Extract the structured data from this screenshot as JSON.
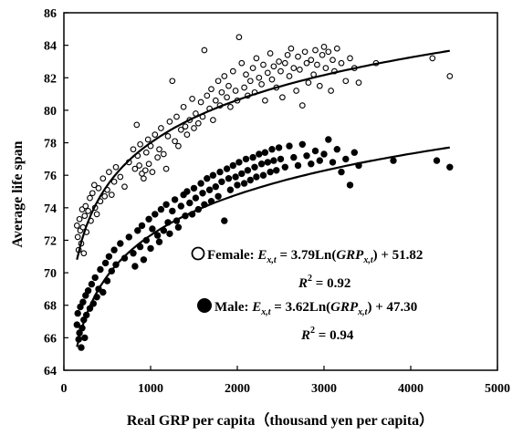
{
  "chart_data": {
    "type": "scatter",
    "xlabel": "Real GRP per capita（thousand yen per capita）",
    "ylabel": "Average life span",
    "xlim": [
      0,
      5000
    ],
    "ylim": [
      64,
      86
    ],
    "x_ticks": [
      "0",
      "1000",
      "2000",
      "3000",
      "4000",
      "5000"
    ],
    "y_ticks": [
      "64",
      "66",
      "68",
      "70",
      "72",
      "74",
      "76",
      "78",
      "80",
      "82",
      "84",
      "86"
    ],
    "grid": false,
    "legend_position": "bottom-right inside plot",
    "series": [
      {
        "name": "Female",
        "marker": "open-circle",
        "color": "#000000",
        "trend": {
          "a": 3.79,
          "b": 51.82
        },
        "equation_parts": {
          "label": "Female: ",
          "lhs": "E",
          "lhs_sub": "x,t",
          "mid": " = 3.79Ln(",
          "var": "GRP",
          "var_sub": "x,t",
          "tail": ") + 51.82"
        },
        "r2_label": "R",
        "r2_value": " = 0.92",
        "points": [
          [
            150,
            72.9
          ],
          [
            160,
            72.2
          ],
          [
            170,
            71.4
          ],
          [
            180,
            73.3
          ],
          [
            190,
            72.6
          ],
          [
            200,
            71.8
          ],
          [
            210,
            73.9
          ],
          [
            220,
            72.8
          ],
          [
            230,
            71.2
          ],
          [
            240,
            73.5
          ],
          [
            250,
            74.1
          ],
          [
            260,
            72.5
          ],
          [
            280,
            73.8
          ],
          [
            300,
            74.6
          ],
          [
            310,
            73.2
          ],
          [
            330,
            74.9
          ],
          [
            350,
            75.4
          ],
          [
            360,
            74.0
          ],
          [
            380,
            73.6
          ],
          [
            400,
            75.2
          ],
          [
            420,
            74.4
          ],
          [
            450,
            75.8
          ],
          [
            470,
            74.7
          ],
          [
            500,
            75.1
          ],
          [
            520,
            76.2
          ],
          [
            550,
            74.8
          ],
          [
            580,
            75.6
          ],
          [
            600,
            76.5
          ],
          [
            650,
            75.9
          ],
          [
            700,
            75.3
          ],
          [
            750,
            76.8
          ],
          [
            800,
            77.6
          ],
          [
            820,
            76.4
          ],
          [
            840,
            79.1
          ],
          [
            850,
            77.2
          ],
          [
            870,
            76.6
          ],
          [
            880,
            77.9
          ],
          [
            900,
            76.1
          ],
          [
            920,
            75.8
          ],
          [
            940,
            76.3
          ],
          [
            950,
            77.4
          ],
          [
            970,
            78.2
          ],
          [
            980,
            76.7
          ],
          [
            1000,
            77.8
          ],
          [
            1020,
            76.2
          ],
          [
            1050,
            78.5
          ],
          [
            1080,
            77.1
          ],
          [
            1100,
            77.6
          ],
          [
            1120,
            78.9
          ],
          [
            1150,
            77.3
          ],
          [
            1180,
            76.4
          ],
          [
            1200,
            78.4
          ],
          [
            1220,
            79.3
          ],
          [
            1250,
            81.8
          ],
          [
            1280,
            78.1
          ],
          [
            1300,
            79.6
          ],
          [
            1320,
            77.8
          ],
          [
            1350,
            78.8
          ],
          [
            1380,
            80.2
          ],
          [
            1400,
            79.0
          ],
          [
            1420,
            78.5
          ],
          [
            1450,
            79.4
          ],
          [
            1480,
            80.7
          ],
          [
            1500,
            78.9
          ],
          [
            1520,
            79.8
          ],
          [
            1550,
            79.2
          ],
          [
            1580,
            80.5
          ],
          [
            1600,
            79.6
          ],
          [
            1620,
            83.7
          ],
          [
            1650,
            80.9
          ],
          [
            1680,
            80.1
          ],
          [
            1700,
            81.3
          ],
          [
            1720,
            79.4
          ],
          [
            1750,
            80.6
          ],
          [
            1780,
            81.8
          ],
          [
            1800,
            80.3
          ],
          [
            1820,
            81.1
          ],
          [
            1850,
            82.1
          ],
          [
            1880,
            80.8
          ],
          [
            1900,
            81.5
          ],
          [
            1920,
            80.2
          ],
          [
            1950,
            82.4
          ],
          [
            1980,
            81.2
          ],
          [
            2000,
            80.6
          ],
          [
            2020,
            84.5
          ],
          [
            2050,
            82.9
          ],
          [
            2080,
            81.4
          ],
          [
            2100,
            82.2
          ],
          [
            2120,
            80.9
          ],
          [
            2150,
            81.8
          ],
          [
            2180,
            82.6
          ],
          [
            2200,
            81.1
          ],
          [
            2220,
            83.2
          ],
          [
            2250,
            82.0
          ],
          [
            2280,
            81.6
          ],
          [
            2300,
            82.8
          ],
          [
            2320,
            80.6
          ],
          [
            2350,
            82.3
          ],
          [
            2380,
            83.5
          ],
          [
            2400,
            81.9
          ],
          [
            2420,
            82.7
          ],
          [
            2450,
            81.4
          ],
          [
            2480,
            83.0
          ],
          [
            2500,
            82.4
          ],
          [
            2520,
            80.8
          ],
          [
            2550,
            82.9
          ],
          [
            2580,
            83.4
          ],
          [
            2600,
            82.1
          ],
          [
            2620,
            83.8
          ],
          [
            2650,
            82.6
          ],
          [
            2680,
            81.2
          ],
          [
            2700,
            83.3
          ],
          [
            2720,
            82.5
          ],
          [
            2750,
            80.3
          ],
          [
            2780,
            83.6
          ],
          [
            2800,
            82.9
          ],
          [
            2820,
            81.7
          ],
          [
            2850,
            83.1
          ],
          [
            2880,
            82.2
          ],
          [
            2900,
            83.7
          ],
          [
            2920,
            82.8
          ],
          [
            2950,
            81.5
          ],
          [
            2980,
            83.4
          ],
          [
            3000,
            83.9
          ],
          [
            3020,
            82.6
          ],
          [
            3050,
            83.6
          ],
          [
            3080,
            81.2
          ],
          [
            3100,
            83.1
          ],
          [
            3120,
            82.4
          ],
          [
            3150,
            83.8
          ],
          [
            3200,
            82.9
          ],
          [
            3250,
            81.8
          ],
          [
            3300,
            83.2
          ],
          [
            3350,
            82.6
          ],
          [
            3400,
            81.7
          ],
          [
            3600,
            82.9
          ],
          [
            4250,
            83.2
          ],
          [
            4450,
            82.1
          ]
        ]
      },
      {
        "name": "Male",
        "marker": "filled-circle",
        "color": "#000000",
        "trend": {
          "a": 3.62,
          "b": 47.3
        },
        "equation_parts": {
          "label": "Male: ",
          "lhs": "E",
          "lhs_sub": "x,t",
          "mid": " = 3.62Ln(",
          "var": "GRP",
          "var_sub": "x,t",
          "tail": ") + 47.30"
        },
        "r2_label": "R",
        "r2_value": " = 0.94",
        "points": [
          [
            150,
            66.8
          ],
          [
            160,
            67.5
          ],
          [
            170,
            65.9
          ],
          [
            180,
            66.3
          ],
          [
            190,
            67.9
          ],
          [
            200,
            65.4
          ],
          [
            210,
            66.6
          ],
          [
            220,
            68.2
          ],
          [
            230,
            67.1
          ],
          [
            240,
            66.0
          ],
          [
            250,
            68.6
          ],
          [
            260,
            67.4
          ],
          [
            280,
            68.9
          ],
          [
            300,
            67.8
          ],
          [
            320,
            69.3
          ],
          [
            340,
            68.1
          ],
          [
            360,
            69.7
          ],
          [
            380,
            68.5
          ],
          [
            400,
            69.0
          ],
          [
            420,
            70.2
          ],
          [
            450,
            68.8
          ],
          [
            480,
            70.6
          ],
          [
            500,
            69.5
          ],
          [
            520,
            71.0
          ],
          [
            550,
            70.1
          ],
          [
            580,
            71.4
          ],
          [
            600,
            70.5
          ],
          [
            650,
            71.8
          ],
          [
            700,
            70.9
          ],
          [
            750,
            72.2
          ],
          [
            800,
            71.2
          ],
          [
            820,
            70.4
          ],
          [
            850,
            72.6
          ],
          [
            880,
            71.6
          ],
          [
            900,
            72.9
          ],
          [
            920,
            70.8
          ],
          [
            950,
            72.0
          ],
          [
            980,
            73.3
          ],
          [
            1000,
            71.5
          ],
          [
            1020,
            72.7
          ],
          [
            1050,
            73.6
          ],
          [
            1080,
            72.3
          ],
          [
            1100,
            71.9
          ],
          [
            1120,
            73.9
          ],
          [
            1150,
            72.6
          ],
          [
            1180,
            74.2
          ],
          [
            1200,
            73.1
          ],
          [
            1220,
            72.4
          ],
          [
            1250,
            73.8
          ],
          [
            1280,
            74.5
          ],
          [
            1300,
            73.2
          ],
          [
            1320,
            72.8
          ],
          [
            1350,
            74.1
          ],
          [
            1380,
            74.8
          ],
          [
            1400,
            73.5
          ],
          [
            1420,
            75.0
          ],
          [
            1450,
            74.3
          ],
          [
            1480,
            73.6
          ],
          [
            1500,
            75.2
          ],
          [
            1520,
            74.6
          ],
          [
            1550,
            73.9
          ],
          [
            1580,
            75.5
          ],
          [
            1600,
            74.9
          ],
          [
            1620,
            74.2
          ],
          [
            1650,
            75.8
          ],
          [
            1680,
            75.1
          ],
          [
            1700,
            74.4
          ],
          [
            1720,
            76.0
          ],
          [
            1750,
            75.3
          ],
          [
            1780,
            74.7
          ],
          [
            1800,
            76.2
          ],
          [
            1820,
            75.6
          ],
          [
            1850,
            73.2
          ],
          [
            1880,
            76.4
          ],
          [
            1900,
            75.8
          ],
          [
            1920,
            75.1
          ],
          [
            1950,
            76.6
          ],
          [
            1980,
            75.9
          ],
          [
            2000,
            75.4
          ],
          [
            2020,
            76.8
          ],
          [
            2050,
            76.1
          ],
          [
            2080,
            75.5
          ],
          [
            2100,
            77.0
          ],
          [
            2120,
            76.3
          ],
          [
            2150,
            75.7
          ],
          [
            2180,
            77.1
          ],
          [
            2200,
            76.5
          ],
          [
            2220,
            75.9
          ],
          [
            2250,
            77.3
          ],
          [
            2280,
            76.7
          ],
          [
            2300,
            76.0
          ],
          [
            2320,
            77.4
          ],
          [
            2350,
            76.8
          ],
          [
            2380,
            76.2
          ],
          [
            2400,
            77.6
          ],
          [
            2420,
            76.9
          ],
          [
            2450,
            76.3
          ],
          [
            2480,
            77.7
          ],
          [
            2500,
            77.0
          ],
          [
            2550,
            76.5
          ],
          [
            2600,
            77.8
          ],
          [
            2650,
            77.1
          ],
          [
            2700,
            76.6
          ],
          [
            2750,
            77.9
          ],
          [
            2800,
            77.2
          ],
          [
            2850,
            76.7
          ],
          [
            2900,
            77.5
          ],
          [
            2950,
            76.9
          ],
          [
            3000,
            77.3
          ],
          [
            3050,
            78.2
          ],
          [
            3100,
            76.8
          ],
          [
            3150,
            77.6
          ],
          [
            3200,
            76.2
          ],
          [
            3250,
            77.0
          ],
          [
            3300,
            75.4
          ],
          [
            3350,
            77.4
          ],
          [
            3400,
            76.6
          ],
          [
            3800,
            76.9
          ],
          [
            4300,
            76.9
          ],
          [
            4450,
            76.5
          ]
        ]
      }
    ]
  }
}
